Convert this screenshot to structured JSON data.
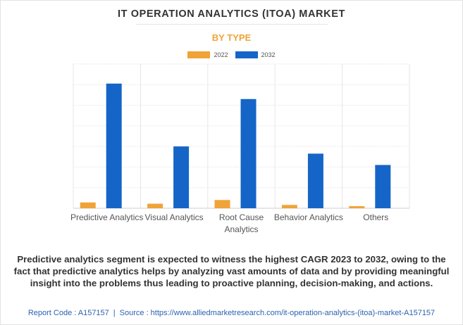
{
  "header": {
    "title": "IT OPERATION ANALYTICS (ITOA) MARKET",
    "subtitle": "BY TYPE"
  },
  "chart_data": {
    "type": "bar",
    "categories": [
      [
        "Predictive Analytics"
      ],
      [
        "Visual Analytics"
      ],
      [
        "Root Cause",
        "Analytics"
      ],
      [
        "Behavior Analytics"
      ],
      [
        "Others"
      ]
    ],
    "series": [
      {
        "name": "2022",
        "color": "#f0a338",
        "values": [
          0.28,
          0.22,
          0.4,
          0.16,
          0.1
        ]
      },
      {
        "name": "2032",
        "color": "#1565c8",
        "values": [
          6.05,
          3.0,
          5.3,
          2.65,
          2.1
        ]
      }
    ],
    "ylim": [
      0,
      7
    ],
    "grid": true,
    "legend_position": "top-center",
    "yaxis_labels_shown": false
  },
  "description": "Predictive analytics segment is expected to witness the highest CAGR 2023 to 2032, owing to the fact that predictive analytics helps by analyzing vast amounts of data and by providing meaningful insight into the problems thus leading to proactive planning, decision-making, and actions.",
  "footer": {
    "report_code": "Report Code : A157157",
    "separator": "|",
    "source": "Source : https://www.alliedmarketresearch.com/it-operation-analytics-(itoa)-market-A157157"
  }
}
